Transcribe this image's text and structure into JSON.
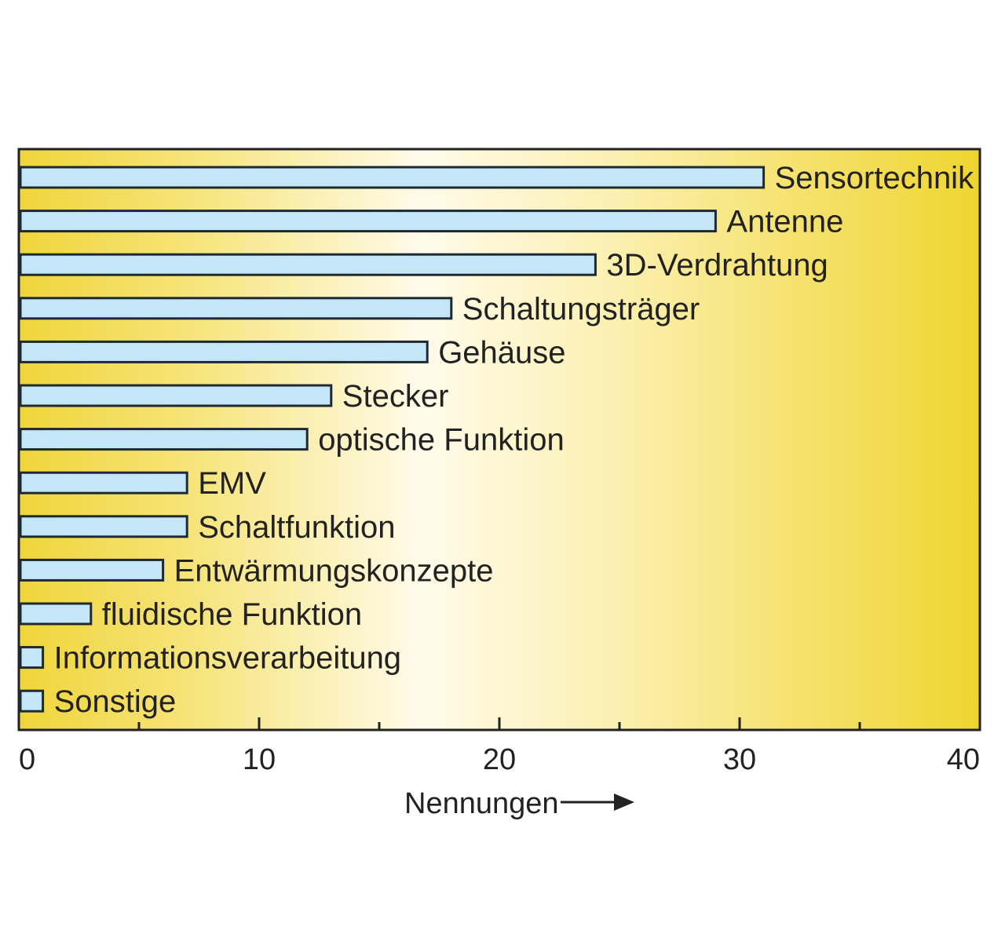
{
  "chart_data": {
    "type": "bar",
    "orientation": "horizontal",
    "categories": [
      "Sensortechnik",
      "Antenne",
      "3D-Verdrahtung",
      "Schaltungsträger",
      "Gehäuse",
      "Stecker",
      "optische Funktion",
      "EMV",
      "Schaltfunktion",
      "Entwärmungskonzepte",
      "fluidische Funktion",
      "Informationsverarbeitung",
      "Sonstige"
    ],
    "values": [
      31,
      29,
      24,
      18,
      17,
      13,
      12,
      7,
      7,
      6,
      3,
      1,
      1
    ],
    "xlabel": "Nennungen",
    "xlim": [
      0,
      40
    ],
    "xticks": [
      0,
      10,
      20,
      30,
      40
    ],
    "minor_xticks": [
      5,
      15,
      25,
      35
    ],
    "grid": false,
    "colors": {
      "bar_fill": "#c4e6f7",
      "bar_stroke": "#1e2a33",
      "background_edge": "#f0d840",
      "background_center": "#fffbe8",
      "axis": "#222222"
    }
  }
}
